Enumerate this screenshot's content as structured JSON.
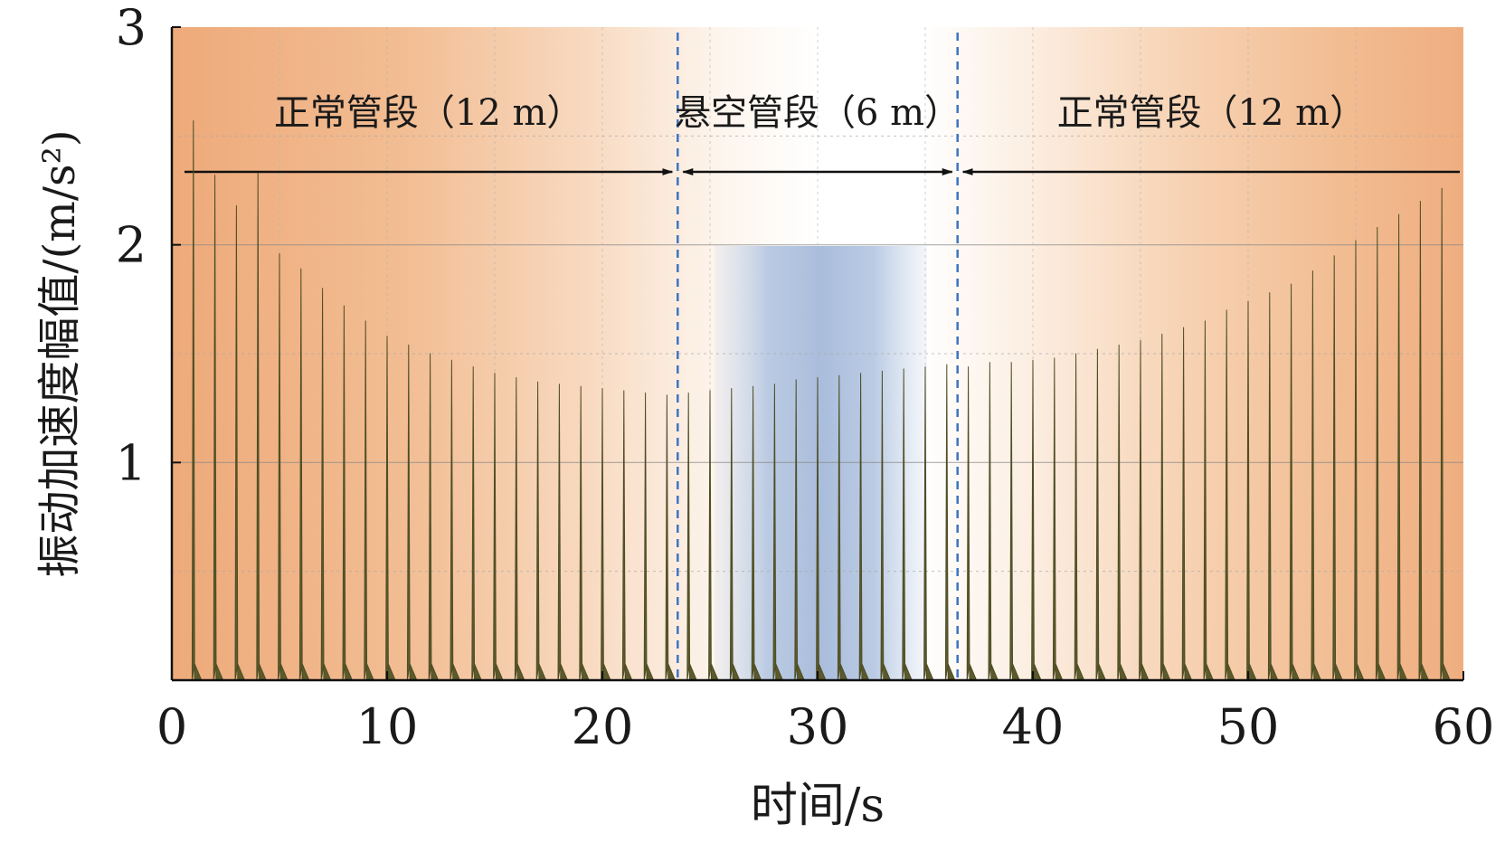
{
  "chart_data": {
    "type": "line",
    "xlabel": "时间/s",
    "ylabel": "振动加速度幅值/(m/s²)",
    "xlim": [
      0,
      60
    ],
    "ylim": [
      0,
      3
    ],
    "xticks": [
      "0",
      "10",
      "20",
      "30",
      "40",
      "50",
      "60"
    ],
    "yticks": [
      "1",
      "2",
      "3"
    ],
    "grid": true,
    "segment_boundaries": [
      23.5,
      36.5
    ],
    "segments": [
      {
        "label": "正常管段（12 m）",
        "x_range": [
          0,
          23.5
        ]
      },
      {
        "label": "悬空管段（6 m）",
        "x_range": [
          23.5,
          36.5
        ]
      },
      {
        "label": "正常管段（12 m）",
        "x_range": [
          36.5,
          60
        ]
      }
    ],
    "series": [
      {
        "type": "impulse",
        "x": [
          1.0,
          2.0,
          3.0,
          4.0,
          5.0,
          6.0,
          7.0,
          8.0,
          9.0,
          10.0,
          11.0,
          12.0,
          13.0,
          14.0,
          15.0,
          16.0,
          17.0,
          18.0,
          19.0,
          20.0,
          21.0,
          22.0,
          23.0,
          24.0,
          25.0,
          26.0,
          27.0,
          28.0,
          29.0,
          30.0,
          31.0,
          32.0,
          33.0,
          34.0,
          35.0,
          36.0,
          37.0,
          38.0,
          39.0,
          40.0,
          41.0,
          42.0,
          43.0,
          44.0,
          45.0,
          46.0,
          47.0,
          48.0,
          49.0,
          50.0,
          51.0,
          52.0,
          53.0,
          54.0,
          55.0,
          56.0,
          57.0,
          58.0,
          59.0
        ],
        "values": [
          2.57,
          2.32,
          2.18,
          2.33,
          1.96,
          1.89,
          1.8,
          1.72,
          1.65,
          1.58,
          1.54,
          1.5,
          1.47,
          1.44,
          1.41,
          1.39,
          1.37,
          1.36,
          1.35,
          1.34,
          1.33,
          1.32,
          1.31,
          1.32,
          1.33,
          1.34,
          1.35,
          1.36,
          1.38,
          1.39,
          1.4,
          1.41,
          1.42,
          1.43,
          1.44,
          1.45,
          1.44,
          1.46,
          1.46,
          1.47,
          1.48,
          1.5,
          1.52,
          1.54,
          1.56,
          1.59,
          1.62,
          1.65,
          1.7,
          1.74,
          1.78,
          1.82,
          1.88,
          1.95,
          2.02,
          2.08,
          2.14,
          2.2,
          2.26
        ]
      }
    ]
  }
}
